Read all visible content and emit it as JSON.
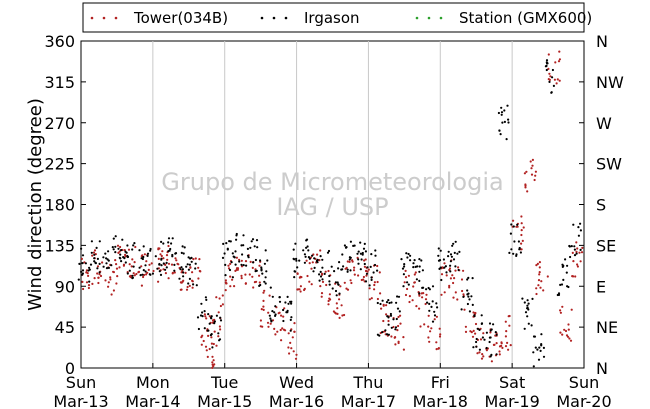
{
  "chart_data": {
    "type": "scatter",
    "title": "",
    "ylabel": "Wind direction (degree)",
    "ylim": [
      0,
      360
    ],
    "yticks": [
      0,
      45,
      90,
      135,
      180,
      225,
      270,
      315,
      360
    ],
    "yticks_right": [
      "N",
      "NE",
      "E",
      "SE",
      "S",
      "SW",
      "W",
      "NW",
      "N"
    ],
    "xlim": [
      "2016-03-13",
      "2016-03-20"
    ],
    "xticks": [
      {
        "day": "Sun",
        "date": "Mar-13"
      },
      {
        "day": "Mon",
        "date": "Mar-14"
      },
      {
        "day": "Tue",
        "date": "Mar-15"
      },
      {
        "day": "Wed",
        "date": "Mar-16"
      },
      {
        "day": "Thu",
        "date": "Mar-17"
      },
      {
        "day": "Fri",
        "date": "Mar-18"
      },
      {
        "day": "Sat",
        "date": "Mar-19"
      },
      {
        "day": "Sun",
        "date": "Mar-20"
      }
    ],
    "grid": "vertical",
    "legend_position": "top",
    "watermark": [
      "Grupo de Micrometeorologia",
      "IAG / USP"
    ],
    "series": [
      {
        "name": "Tower(034B)",
        "color": "#b22222",
        "marker": "dot",
        "x": [
          "2016-03-13 02:00",
          "2016-03-13 06:00",
          "2016-03-13 10:00",
          "2016-03-13 14:00",
          "2016-03-13 18:00",
          "2016-03-13 22:00",
          "2016-03-14 02:00",
          "2016-03-14 06:00",
          "2016-03-14 10:00",
          "2016-03-14 14:00",
          "2016-03-14 18:00",
          "2016-03-14 20:00",
          "2016-03-14 22:00",
          "2016-03-15 02:00",
          "2016-03-15 06:00",
          "2016-03-15 10:00",
          "2016-03-15 14:00",
          "2016-03-15 18:00",
          "2016-03-15 22:00",
          "2016-03-16 02:00",
          "2016-03-16 06:00",
          "2016-03-16 10:00",
          "2016-03-16 14:00",
          "2016-03-16 18:00",
          "2016-03-16 22:00",
          "2016-03-17 02:00",
          "2016-03-17 06:00",
          "2016-03-17 10:00",
          "2016-03-17 14:00",
          "2016-03-17 18:00",
          "2016-03-17 22:00",
          "2016-03-18 02:00",
          "2016-03-18 06:00",
          "2016-03-18 10:00",
          "2016-03-18 14:00",
          "2016-03-18 18:00",
          "2016-03-18 22:00",
          "2016-03-19 02:00",
          "2016-03-19 06:00",
          "2016-03-19 10:00",
          "2016-03-19 14:00",
          "2016-03-19 18:00",
          "2016-03-19 22:00"
        ],
        "y": [
          105,
          110,
          100,
          115,
          120,
          108,
          112,
          118,
          105,
          102,
          40,
          20,
          60,
          100,
          110,
          105,
          65,
          50,
          30,
          100,
          110,
          90,
          75,
          100,
          110,
          95,
          50,
          40,
          90,
          65,
          40,
          100,
          95,
          50,
          30,
          25,
          40,
          150,
          210,
          100,
          330,
          50,
          120
        ]
      },
      {
        "name": "Irgason",
        "color": "#000000",
        "marker": "dot",
        "x": [
          "2016-03-13 01:00",
          "2016-03-13 05:00",
          "2016-03-13 09:00",
          "2016-03-13 13:00",
          "2016-03-13 17:00",
          "2016-03-13 21:00",
          "2016-03-14 01:00",
          "2016-03-14 05:00",
          "2016-03-14 09:00",
          "2016-03-14 13:00",
          "2016-03-14 17:00",
          "2016-03-14 21:00",
          "2016-03-15 01:00",
          "2016-03-15 05:00",
          "2016-03-15 09:00",
          "2016-03-15 13:00",
          "2016-03-15 17:00",
          "2016-03-15 21:00",
          "2016-03-16 01:00",
          "2016-03-16 05:00",
          "2016-03-16 09:00",
          "2016-03-16 13:00",
          "2016-03-16 17:00",
          "2016-03-16 21:00",
          "2016-03-17 01:00",
          "2016-03-17 05:00",
          "2016-03-17 09:00",
          "2016-03-17 13:00",
          "2016-03-17 17:00",
          "2016-03-17 21:00",
          "2016-03-18 01:00",
          "2016-03-18 05:00",
          "2016-03-18 09:00",
          "2016-03-18 13:00",
          "2016-03-18 17:00",
          "2016-03-18 21:00",
          "2016-03-19 01:00",
          "2016-03-19 05:00",
          "2016-03-19 09:00",
          "2016-03-19 13:00",
          "2016-03-19 17:00",
          "2016-03-19 21:00"
        ],
        "y": [
          115,
          120,
          125,
          130,
          118,
          122,
          120,
          128,
          115,
          110,
          60,
          40,
          120,
          130,
          125,
          110,
          70,
          60,
          120,
          125,
          115,
          100,
          120,
          125,
          110,
          55,
          60,
          110,
          100,
          70,
          115,
          120,
          80,
          40,
          30,
          270,
          140,
          60,
          20,
          320,
          100,
          140
        ]
      },
      {
        "name": "Station (GMX600)",
        "color": "#2ca02c",
        "marker": "dot",
        "x": [],
        "y": []
      }
    ]
  }
}
